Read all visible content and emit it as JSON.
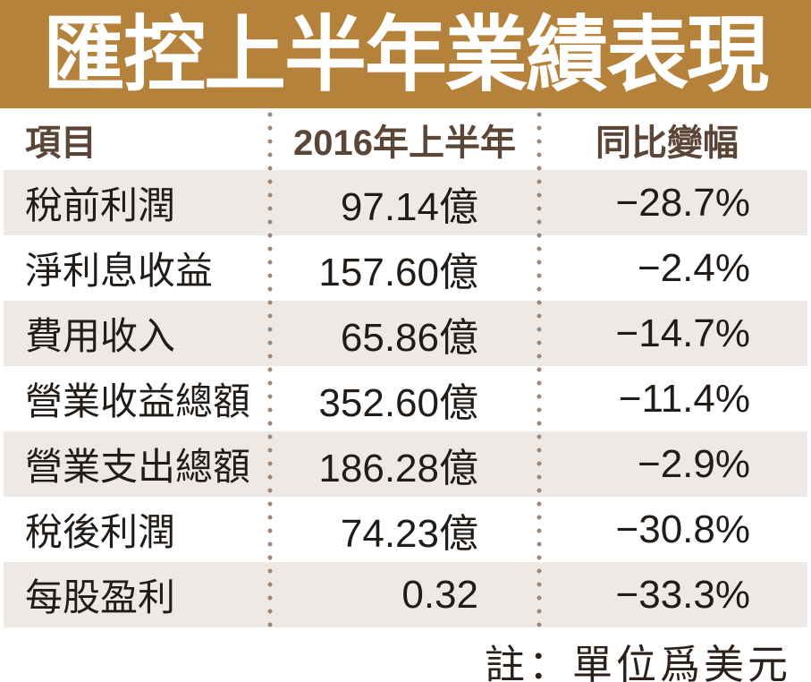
{
  "banner": {
    "title": "匯控上半年業績表現"
  },
  "table": {
    "headers": {
      "item": "項目",
      "period": "2016年上半年",
      "change": "同比變幅"
    },
    "rows": [
      {
        "item": "稅前利潤",
        "value": "97.14億",
        "change": "−28.7%"
      },
      {
        "item": "淨利息收益",
        "value": "157.60億",
        "change": "−2.4%"
      },
      {
        "item": "費用收入",
        "value": "65.86億",
        "change": "−14.7%"
      },
      {
        "item": "營業收益總額",
        "value": "352.60億",
        "change": "−11.4%"
      },
      {
        "item": "營業支出總額",
        "value": "186.28億",
        "change": "−2.9%"
      },
      {
        "item": "稅後利潤",
        "value": "74.23億",
        "change": "−30.8%"
      },
      {
        "item": "每股盈利",
        "value": "0.32",
        "change": "−33.3%"
      }
    ]
  },
  "footer": {
    "note": "註：單位爲美元"
  },
  "colors": {
    "banner_bg": "#b5823c",
    "banner_text": "#ffffff",
    "header_text": "#5b4536",
    "body_text": "#221c18",
    "alt_row_bg": "#efe9e5",
    "dot_color": "#9e8777",
    "footer_text": "#2b211a"
  },
  "chart_data": {
    "type": "table",
    "title": "匯控上半年業績表現",
    "columns": [
      "項目",
      "2016年上半年",
      "同比變幅"
    ],
    "rows": [
      [
        "稅前利潤",
        "97.14億",
        "-28.7%"
      ],
      [
        "淨利息收益",
        "157.60億",
        "-2.4%"
      ],
      [
        "費用收入",
        "65.86億",
        "-14.7%"
      ],
      [
        "營業收益總額",
        "352.60億",
        "-11.4%"
      ],
      [
        "營業支出總額",
        "186.28億",
        "-2.9%"
      ],
      [
        "稅後利潤",
        "74.23億",
        "-30.8%"
      ],
      [
        "每股盈利",
        "0.32",
        "-33.3%"
      ]
    ],
    "note": "註：單位爲美元",
    "layout": {
      "row_striping": "odd rows beige #efe9e5, even rows white",
      "column_separators": "vertical dotted lines",
      "value_alignment": "right",
      "unit": "USD"
    }
  }
}
